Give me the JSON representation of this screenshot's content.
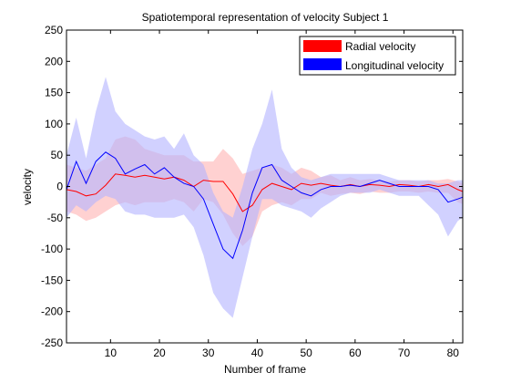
{
  "chart_data": {
    "type": "area",
    "title": "Spatiotemporal representation of velocity Subject 1",
    "xlabel": "Number of frame",
    "ylabel": "velocity",
    "xlim": [
      1,
      82
    ],
    "ylim": [
      -250,
      250
    ],
    "xticks": [
      10,
      20,
      30,
      40,
      50,
      60,
      70,
      80
    ],
    "yticks": [
      -250,
      -200,
      -150,
      -100,
      -50,
      0,
      50,
      100,
      150,
      200,
      250
    ],
    "grid": false,
    "legend_position": "top-right",
    "series": [
      {
        "name": "Radial velocity",
        "color": "#ff0000",
        "band_color": "#ffb3b3",
        "x": [
          1,
          3,
          5,
          7,
          9,
          11,
          13,
          15,
          17,
          19,
          21,
          23,
          25,
          27,
          29,
          31,
          33,
          35,
          37,
          39,
          41,
          43,
          45,
          47,
          49,
          51,
          53,
          55,
          57,
          59,
          61,
          63,
          65,
          67,
          69,
          71,
          73,
          75,
          77,
          79,
          81,
          82
        ],
        "mean": [
          -5,
          -8,
          -15,
          -12,
          2,
          20,
          18,
          15,
          18,
          15,
          12,
          15,
          10,
          0,
          10,
          8,
          8,
          -12,
          -40,
          -30,
          -5,
          5,
          0,
          -5,
          5,
          2,
          5,
          2,
          0,
          3,
          0,
          3,
          2,
          0,
          3,
          2,
          0,
          3,
          0,
          3,
          -5,
          -8
        ],
        "upper": [
          35,
          30,
          25,
          35,
          45,
          75,
          80,
          75,
          60,
          55,
          50,
          50,
          50,
          40,
          40,
          40,
          60,
          45,
          20,
          25,
          30,
          35,
          30,
          20,
          30,
          25,
          15,
          18,
          10,
          15,
          10,
          12,
          10,
          8,
          10,
          10,
          8,
          10,
          10,
          12,
          8,
          5
        ],
        "lower": [
          -40,
          -45,
          -55,
          -50,
          -40,
          -30,
          -25,
          -30,
          -25,
          -25,
          -25,
          -20,
          -25,
          -40,
          -20,
          -25,
          -45,
          -75,
          -95,
          -80,
          -40,
          -30,
          -25,
          -30,
          -20,
          -20,
          -10,
          -15,
          -12,
          -10,
          -12,
          -8,
          -10,
          -10,
          -8,
          -8,
          -10,
          -8,
          -10,
          -10,
          -25,
          -28
        ]
      },
      {
        "name": "Longitudinal velocity",
        "color": "#0000ff",
        "band_color": "#b3b3ff",
        "x": [
          1,
          3,
          5,
          7,
          9,
          11,
          13,
          15,
          17,
          19,
          21,
          23,
          25,
          27,
          29,
          31,
          33,
          35,
          37,
          39,
          41,
          43,
          45,
          47,
          49,
          51,
          53,
          55,
          57,
          59,
          61,
          63,
          65,
          67,
          69,
          71,
          73,
          75,
          77,
          79,
          81,
          82
        ],
        "mean": [
          -5,
          40,
          5,
          40,
          55,
          45,
          20,
          28,
          35,
          20,
          30,
          15,
          5,
          0,
          -20,
          -60,
          -100,
          -115,
          -70,
          -10,
          30,
          35,
          10,
          0,
          -10,
          -15,
          -5,
          0,
          0,
          2,
          0,
          5,
          10,
          5,
          0,
          0,
          0,
          0,
          -5,
          -25,
          -20,
          -17
        ],
        "upper": [
          50,
          110,
          45,
          120,
          175,
          120,
          100,
          90,
          80,
          75,
          80,
          60,
          85,
          50,
          35,
          -10,
          -40,
          -50,
          0,
          60,
          100,
          155,
          60,
          30,
          15,
          10,
          15,
          20,
          20,
          20,
          20,
          20,
          20,
          15,
          10,
          10,
          10,
          10,
          5,
          5,
          10,
          10
        ],
        "lower": [
          -50,
          -30,
          -40,
          -25,
          -15,
          -20,
          -40,
          -45,
          -45,
          -50,
          -50,
          -50,
          -45,
          -65,
          -110,
          -170,
          -195,
          -210,
          -145,
          -80,
          -20,
          -20,
          -30,
          -35,
          -40,
          -50,
          -35,
          -25,
          -15,
          -10,
          -10,
          -10,
          -5,
          -10,
          -15,
          -15,
          -15,
          -30,
          -45,
          -80,
          -55,
          -50
        ]
      }
    ]
  }
}
